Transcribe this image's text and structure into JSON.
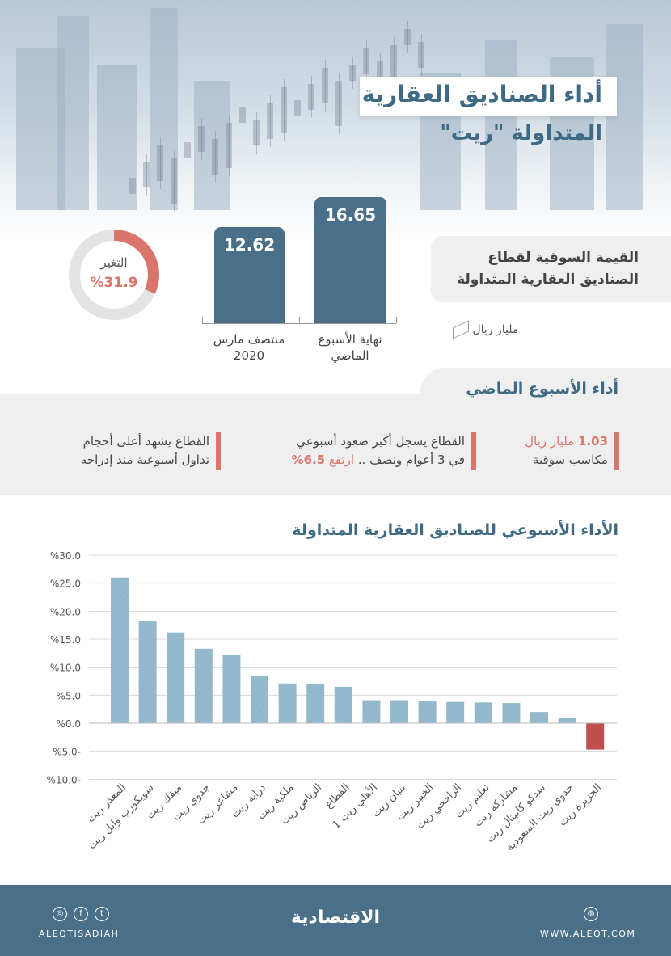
{
  "header": {
    "title": "أداء الصناديق العقارية",
    "subtitle": "المتداولة \"ريت\""
  },
  "market_value": {
    "label_line1": "القيمة السوقية لقطاع",
    "label_line2": "الصناديق العقارية المتداولة",
    "unit": "مليار ريال",
    "unit_icon": "money-icon",
    "bars": [
      {
        "value": 16.65,
        "display": "16.65",
        "label_line1": "نهاية الأسبوع",
        "label_line2": "الماضي"
      },
      {
        "value": 12.62,
        "display": "12.62",
        "label_line1": "منتصف مارس",
        "label_line2": "2020"
      }
    ],
    "change": {
      "label": "التغير",
      "value": "%31.9",
      "percent": 31.9
    }
  },
  "week": {
    "title": "أداء الأسبوع الماضي",
    "items": [
      {
        "highlight": "1.03",
        "highlight_unit": "مليار ريال",
        "line2": "مكاسب سوقية"
      },
      {
        "line1": "القطاع يسجل أكبر صعود أسبوعي",
        "line2": "في 3 أعوام ونصف ..",
        "highlight": "ارتفع",
        "highlight_value": "6.5%"
      },
      {
        "line1": "القطاع يشهد أعلى أحجام",
        "line2": "تداول أسبوعية منذ إدراجه"
      }
    ]
  },
  "chart_data": {
    "type": "bar",
    "title": "الأداء الأسبوعي للصناديق العقارية المتداولة",
    "categories": [
      "المعذر ريت",
      "سويكورب وابل ريت",
      "ميفك ريت",
      "جدوى ريت",
      "مشاعر ريت",
      "دراية ريت",
      "ملكية ريت",
      "الرياض ريت",
      "القطاع",
      "الأهلي ريت 1",
      "بنيان ريت",
      "الخبير ريت",
      "الراجحي ريت",
      "تعليم ريت",
      "مشاركة ريت",
      "سدكو كابيتال ريت",
      "جدوى ريت السعودية",
      "الجزيرة ريت"
    ],
    "values": [
      26.0,
      18.2,
      16.2,
      13.3,
      12.2,
      8.5,
      7.1,
      7.0,
      6.5,
      4.1,
      4.1,
      4.0,
      3.8,
      3.7,
      3.6,
      2.0,
      1.0,
      -4.7
    ],
    "yticks": [
      30,
      25,
      20,
      15,
      10,
      5,
      0,
      -5,
      -10
    ],
    "ytick_labels": [
      "%30.0",
      "%25.0",
      "%20.0",
      "%15.0",
      "%10.0",
      "%5.0",
      "%0.0",
      "%5.0-",
      "%10.0-"
    ],
    "ylim": [
      -10,
      30
    ],
    "grid": true,
    "colors": {
      "positive": "#95b9cc",
      "negative": "#c0504d"
    }
  },
  "footer": {
    "social_handle": "ALEQTISADIAH",
    "logo": "الاقتصادية",
    "website": "WWW.ALEQT.COM"
  },
  "colors": {
    "primary": "#4a7089",
    "accent": "#d9756a",
    "panel": "#efefef"
  }
}
